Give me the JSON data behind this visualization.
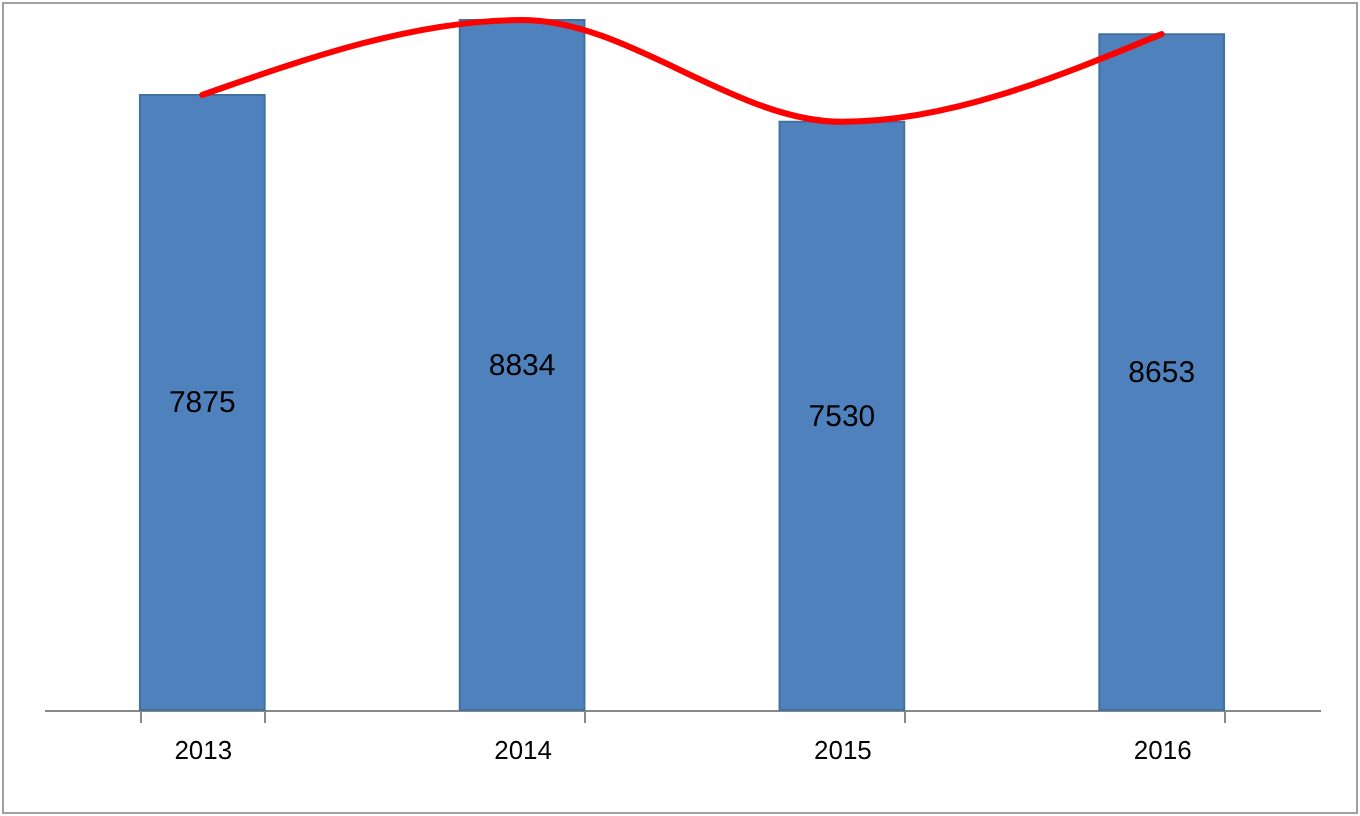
{
  "chart_data": {
    "type": "bar",
    "categories": [
      "2013",
      "2014",
      "2015",
      "2016"
    ],
    "series": [
      {
        "color": "#4f81bd",
        "values": [
          7875,
          8834,
          7530,
          8653
        ],
        "value_labels": [
          "7875",
          "8834",
          "7530",
          "8653"
        ]
      },
      {
        "type": "line",
        "color": "#ff0000",
        "values": [
          7875,
          8834,
          7530,
          8653
        ]
      }
    ]
  }
}
